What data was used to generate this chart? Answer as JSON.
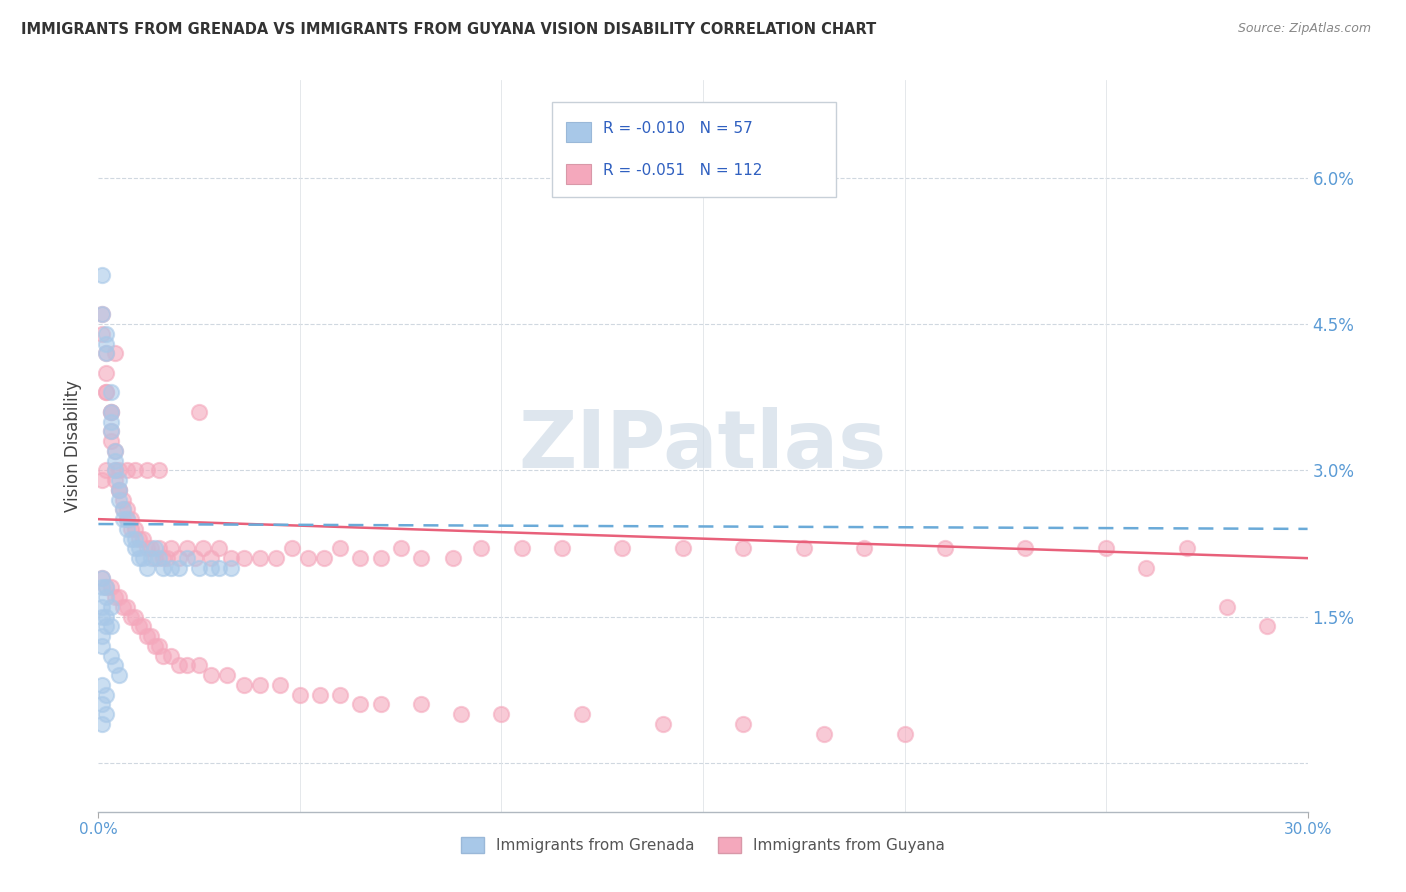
{
  "title": "IMMIGRANTS FROM GRENADA VS IMMIGRANTS FROM GUYANA VISION DISABILITY CORRELATION CHART",
  "source_text": "Source: ZipAtlas.com",
  "ylabel": "Vision Disability",
  "xlim": [
    0.0,
    0.3
  ],
  "ylim": [
    -0.005,
    0.07
  ],
  "ytick_vals": [
    0.0,
    0.015,
    0.03,
    0.045,
    0.06
  ],
  "ytick_labels": [
    "",
    "1.5%",
    "3.0%",
    "4.5%",
    "6.0%"
  ],
  "xtick_labels": [
    "0.0%",
    "30.0%"
  ],
  "color_grenada": "#a8c8e8",
  "color_guyana": "#f4a8bc",
  "trendline_grenada_color": "#6aaad8",
  "trendline_guyana_color": "#e8607a",
  "watermark_color": "#d0dce8",
  "tick_label_color": "#5b9bd5",
  "grid_color": "#d0d8e0",
  "legend_r1": "R = -0.010",
  "legend_n1": "N = 57",
  "legend_r2": "R = -0.051",
  "legend_n2": "N = 112",
  "grenada_x": [
    0.001,
    0.001,
    0.002,
    0.002,
    0.002,
    0.003,
    0.003,
    0.003,
    0.003,
    0.004,
    0.004,
    0.004,
    0.005,
    0.005,
    0.005,
    0.006,
    0.006,
    0.007,
    0.007,
    0.008,
    0.009,
    0.009,
    0.01,
    0.01,
    0.011,
    0.012,
    0.013,
    0.014,
    0.015,
    0.016,
    0.018,
    0.02,
    0.022,
    0.025,
    0.028,
    0.03,
    0.033,
    0.001,
    0.002,
    0.003,
    0.001,
    0.002,
    0.001,
    0.003,
    0.004,
    0.005,
    0.001,
    0.002,
    0.001,
    0.002,
    0.001,
    0.001,
    0.002,
    0.001,
    0.002,
    0.003,
    0.001
  ],
  "grenada_y": [
    0.05,
    0.046,
    0.044,
    0.042,
    0.043,
    0.038,
    0.036,
    0.034,
    0.035,
    0.032,
    0.03,
    0.031,
    0.028,
    0.027,
    0.029,
    0.026,
    0.025,
    0.024,
    0.025,
    0.023,
    0.022,
    0.023,
    0.021,
    0.022,
    0.021,
    0.02,
    0.021,
    0.022,
    0.021,
    0.02,
    0.02,
    0.02,
    0.021,
    0.02,
    0.02,
    0.02,
    0.02,
    0.018,
    0.017,
    0.016,
    0.015,
    0.014,
    0.012,
    0.011,
    0.01,
    0.009,
    0.008,
    0.007,
    0.006,
    0.005,
    0.004,
    0.019,
    0.018,
    0.016,
    0.015,
    0.014,
    0.013
  ],
  "guyana_x": [
    0.001,
    0.001,
    0.002,
    0.002,
    0.002,
    0.003,
    0.003,
    0.003,
    0.004,
    0.004,
    0.004,
    0.005,
    0.005,
    0.006,
    0.006,
    0.007,
    0.007,
    0.008,
    0.008,
    0.009,
    0.01,
    0.011,
    0.012,
    0.013,
    0.014,
    0.015,
    0.016,
    0.017,
    0.018,
    0.02,
    0.022,
    0.024,
    0.026,
    0.028,
    0.03,
    0.033,
    0.036,
    0.04,
    0.044,
    0.048,
    0.052,
    0.056,
    0.06,
    0.065,
    0.07,
    0.075,
    0.08,
    0.088,
    0.095,
    0.105,
    0.115,
    0.13,
    0.145,
    0.16,
    0.175,
    0.19,
    0.21,
    0.23,
    0.25,
    0.27,
    0.001,
    0.002,
    0.003,
    0.004,
    0.005,
    0.006,
    0.007,
    0.008,
    0.009,
    0.01,
    0.011,
    0.012,
    0.013,
    0.014,
    0.015,
    0.016,
    0.018,
    0.02,
    0.022,
    0.025,
    0.028,
    0.032,
    0.036,
    0.04,
    0.045,
    0.05,
    0.055,
    0.06,
    0.065,
    0.07,
    0.08,
    0.09,
    0.1,
    0.12,
    0.14,
    0.16,
    0.18,
    0.2,
    0.003,
    0.002,
    0.004,
    0.29,
    0.28,
    0.26,
    0.001,
    0.002,
    0.005,
    0.007,
    0.009,
    0.012,
    0.015,
    0.025
  ],
  "guyana_y": [
    0.046,
    0.044,
    0.042,
    0.04,
    0.038,
    0.036,
    0.034,
    0.033,
    0.032,
    0.03,
    0.029,
    0.028,
    0.028,
    0.026,
    0.027,
    0.025,
    0.026,
    0.024,
    0.025,
    0.024,
    0.023,
    0.023,
    0.022,
    0.022,
    0.021,
    0.022,
    0.021,
    0.021,
    0.022,
    0.021,
    0.022,
    0.021,
    0.022,
    0.021,
    0.022,
    0.021,
    0.021,
    0.021,
    0.021,
    0.022,
    0.021,
    0.021,
    0.022,
    0.021,
    0.021,
    0.022,
    0.021,
    0.021,
    0.022,
    0.022,
    0.022,
    0.022,
    0.022,
    0.022,
    0.022,
    0.022,
    0.022,
    0.022,
    0.022,
    0.022,
    0.019,
    0.018,
    0.018,
    0.017,
    0.017,
    0.016,
    0.016,
    0.015,
    0.015,
    0.014,
    0.014,
    0.013,
    0.013,
    0.012,
    0.012,
    0.011,
    0.011,
    0.01,
    0.01,
    0.01,
    0.009,
    0.009,
    0.008,
    0.008,
    0.008,
    0.007,
    0.007,
    0.007,
    0.006,
    0.006,
    0.006,
    0.005,
    0.005,
    0.005,
    0.004,
    0.004,
    0.003,
    0.003,
    0.036,
    0.038,
    0.042,
    0.014,
    0.016,
    0.02,
    0.029,
    0.03,
    0.03,
    0.03,
    0.03,
    0.03,
    0.03,
    0.036
  ]
}
